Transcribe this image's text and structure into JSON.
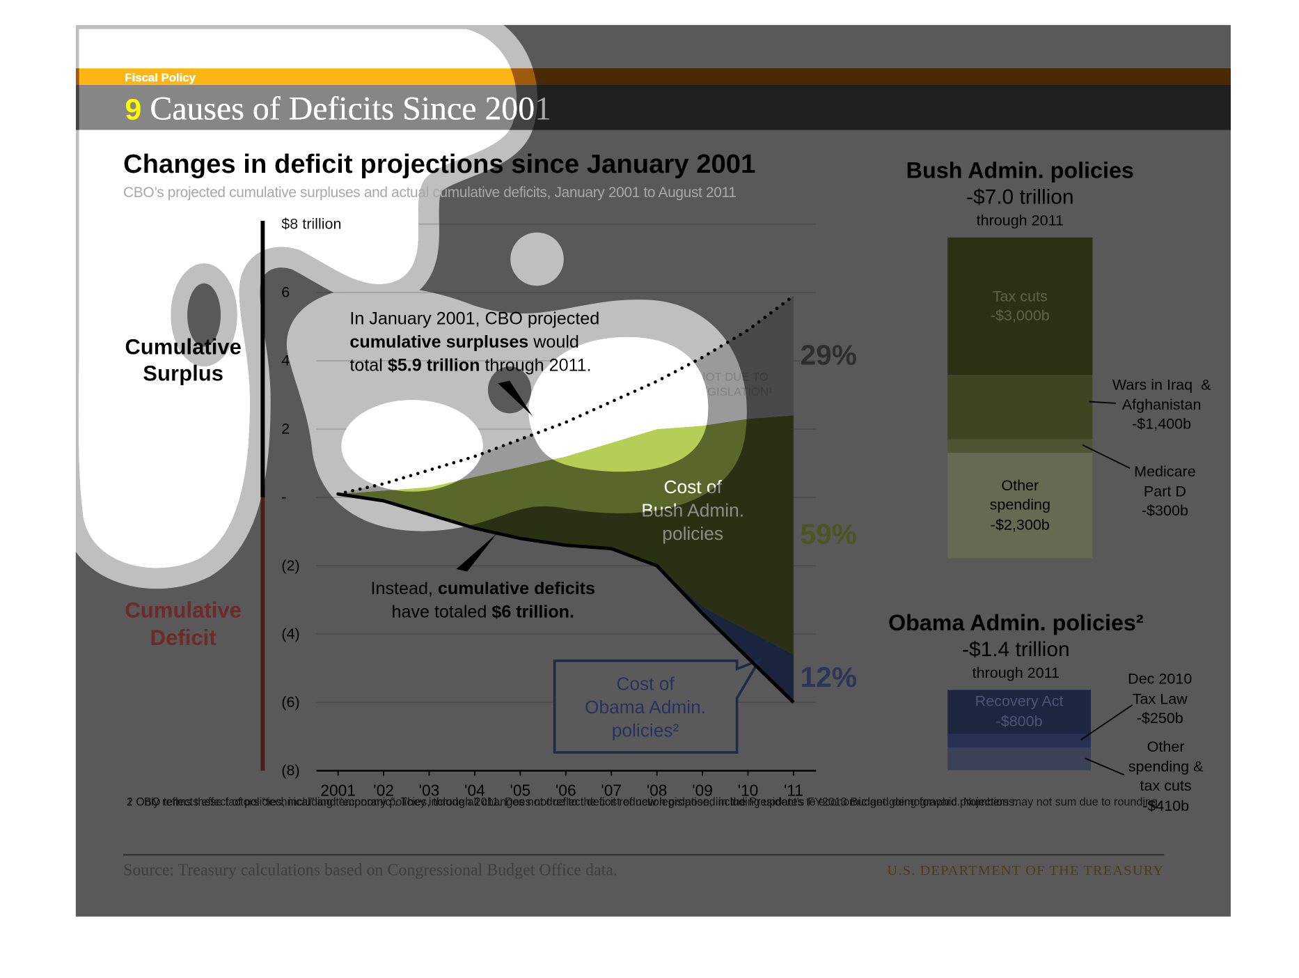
{
  "header": {
    "section": "Fiscal Policy",
    "number": "9",
    "title": "Causes of Deficits Since 2001"
  },
  "chart_data": [
    {
      "type": "area",
      "title": "Changes in deficit projections since January 2001",
      "subtitle": "CBO’s projected cumulative surpluses and actual cumulative deficits, January 2001 to August 2011",
      "categories": [
        "2001",
        "'02",
        "'03",
        "'04",
        "'05",
        "'06",
        "'07",
        "'08",
        "'09",
        "'10",
        "'11"
      ],
      "ylim": [
        -8,
        8
      ],
      "yticks": [
        {
          "value": -8,
          "label": "(8)"
        },
        {
          "value": -6,
          "label": "(6)"
        },
        {
          "value": -4,
          "label": "(4)"
        },
        {
          "value": -2,
          "label": "(2)"
        },
        {
          "value": 0,
          "label": "-"
        },
        2,
        4,
        6,
        {
          "value": 8,
          "label": "$8 trillion"
        }
      ],
      "grid": true,
      "y_regions": [
        "Cumulative\nSurplus",
        "Cumulative\nDeficit"
      ],
      "base": {
        "color": "#000000",
        "values": [
          0.1,
          -0.1,
          -0.5,
          -0.9,
          -1.2,
          -1.4,
          -1.5,
          -2.0,
          -3.4,
          -4.7,
          -6.0
        ]
      },
      "series": [
        {
          "name": "Cost of\nObama Admin.\npolicies²",
          "color": "#1c233d",
          "values": [
            0,
            0,
            0,
            0,
            0,
            0,
            0,
            0,
            0.2,
            0.8,
            1.4
          ],
          "share": 12,
          "share_label": "12%",
          "share_color": "#2a3558"
        },
        {
          "name": "Cost of\nBush Admin.\npolicies",
          "color": "#2a3014",
          "values": [
            0,
            0.3,
            0.8,
            1.5,
            2.1,
            2.6,
            3.1,
            4.0,
            5.3,
            6.2,
            7.0
          ],
          "share": 59,
          "share_label": "59%",
          "share_color": "#4c5420"
        },
        {
          "name": "NOT DUE TO\nLEGISLATION¹",
          "color": "#484848",
          "values": [
            0,
            0.2,
            0.5,
            0.6,
            0.8,
            1.0,
            1.2,
            1.4,
            2.0,
            2.6,
            3.5
          ],
          "share": 29,
          "share_label": "29%",
          "share_color": "#2e2e2e"
        }
      ],
      "projection": {
        "color": "#000000",
        "style": "dotted",
        "values": [
          0.1,
          0.4,
          0.8,
          1.2,
          1.7,
          2.2,
          2.8,
          3.4,
          4.1,
          4.9,
          5.9
        ]
      },
      "annotations": [
        {
          "lines": [
            [
              {
                "text": "In January 2001, CBO projected",
                "bold": false
              }
            ],
            [
              {
                "text": "cumulative surpluses",
                "bold": true
              },
              {
                "text": " would",
                "bold": false
              }
            ],
            [
              {
                "text": "total ",
                "bold": false
              },
              {
                "text": "$5.9 trillion",
                "bold": true
              },
              {
                "text": " through 2011.",
                "bold": false
              }
            ]
          ]
        },
        {
          "lines": [
            [
              {
                "text": "Instead, ",
                "bold": false
              },
              {
                "text": "cumulative deficits",
                "bold": true
              }
            ],
            [
              {
                "text": "have totaled ",
                "bold": false
              },
              {
                "text": "$6 trillion.",
                "bold": true
              }
            ]
          ]
        }
      ]
    },
    {
      "type": "bar",
      "stacked": true,
      "title": "Bush Admin. policies",
      "subtitle": "-$7.0 trillion",
      "period": "through 2011",
      "categories": [
        "Tax cuts",
        "Wars in Iraq  &\nAfghanistan",
        "Medicare\nPart D",
        "Other\nspending"
      ],
      "values": [
        -3000,
        -1400,
        -300,
        -2300
      ],
      "value_labels": [
        "-$3,000b",
        "-$1,400b",
        "-$300b",
        "-$2,300b"
      ],
      "colors": [
        "#2b3113",
        "#3d4620",
        "#4d5433",
        "#676a52"
      ]
    },
    {
      "type": "bar",
      "stacked": true,
      "title": "Obama Admin. policies²",
      "subtitle": "-$1.4 trillion",
      "period": "through 2011",
      "categories": [
        "Recovery Act",
        "Dec 2010\nTax Law",
        "Other\nspending &\ntax cuts"
      ],
      "values": [
        -800,
        -250,
        -410
      ],
      "value_labels": [
        "-$800b",
        "-$250b",
        "-$410b"
      ],
      "colors": [
        "#1e2541",
        "#263052",
        "#3b4257"
      ]
    }
  ],
  "footnotes": [
    "1 CBO terms these factors “technical” and “economic”. They include all changes not due to the cost of new legislation, including updates to economic and demographic projections.",
    "2 Only reflects effect of policies, including temporary policies, through 2011. Does not reflect deficit reduction proposed in the President’s FY2013 Budget going forward. Numbers may not sum due to rounding."
  ],
  "source": "Source: Treasury calculations based on Congressional Budget Office data.",
  "agency": "U.S. DEPARTMENT OF THE TREASURY"
}
